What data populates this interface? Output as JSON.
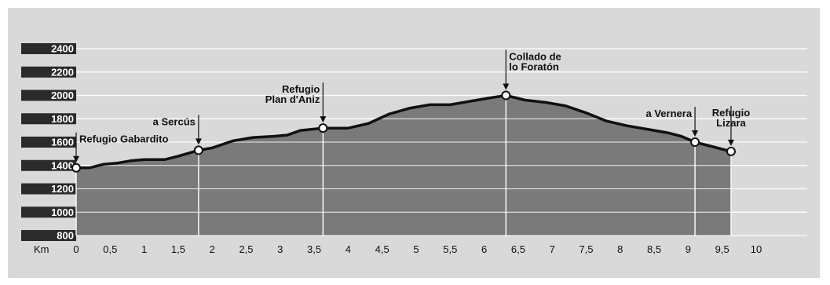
{
  "chart_data": {
    "type": "area",
    "title": "",
    "xlabel": "Km",
    "ylabel": "",
    "xlim": [
      0,
      10
    ],
    "ylim": [
      800,
      2400
    ],
    "x_ticks": [
      "0",
      "0,5",
      "1",
      "1,5",
      "2",
      "2,5",
      "3",
      "3,5",
      "4",
      "4,5",
      "5",
      "5,5",
      "6",
      "6,5",
      "7",
      "7,5",
      "8",
      "8,5",
      "9",
      "9,5",
      "10"
    ],
    "y_ticks": [
      "2400",
      "2200",
      "2000",
      "1800",
      "1600",
      "1400",
      "1200",
      "1000",
      "800"
    ],
    "grid": true,
    "profile": {
      "x": [
        0,
        0.2,
        0.4,
        0.6,
        0.8,
        1.0,
        1.3,
        1.5,
        1.8,
        2.0,
        2.3,
        2.6,
        2.9,
        3.1,
        3.3,
        3.63,
        4.0,
        4.3,
        4.6,
        4.9,
        5.2,
        5.5,
        5.8,
        6.1,
        6.32,
        6.6,
        6.9,
        7.2,
        7.5,
        7.8,
        8.1,
        8.4,
        8.7,
        8.9,
        9.1,
        9.3,
        9.63
      ],
      "y": [
        1380,
        1380,
        1410,
        1420,
        1440,
        1450,
        1450,
        1480,
        1530,
        1550,
        1610,
        1640,
        1650,
        1660,
        1700,
        1720,
        1720,
        1760,
        1840,
        1890,
        1920,
        1920,
        1950,
        1980,
        2000,
        1960,
        1940,
        1910,
        1850,
        1780,
        1740,
        1710,
        1680,
        1650,
        1600,
        1570,
        1520
      ]
    },
    "waypoints": [
      {
        "x": 0,
        "y": 1380,
        "label": [
          "Refugio Gabardito"
        ],
        "anchor": "start"
      },
      {
        "x": 1.8,
        "y": 1530,
        "label": [
          "a Sercús"
        ],
        "anchor": "end"
      },
      {
        "x": 3.63,
        "y": 1720,
        "label": [
          "Refugio",
          "Plan d'Aniz"
        ],
        "anchor": "end"
      },
      {
        "x": 6.32,
        "y": 2000,
        "label": [
          "Collado de",
          "lo Foratón"
        ],
        "anchor": "start"
      },
      {
        "x": 9.1,
        "y": 1600,
        "label": [
          "a Vernera"
        ],
        "anchor": "end"
      },
      {
        "x": 9.63,
        "y": 1520,
        "label": [
          "Refugio",
          "Lizara"
        ],
        "anchor": "middle"
      }
    ],
    "colors": {
      "background": "#d9d9d9",
      "fill": "#7a7a7a",
      "line": "#111111",
      "label_band": "#2b2b2b",
      "grid": "#ffffff"
    }
  }
}
